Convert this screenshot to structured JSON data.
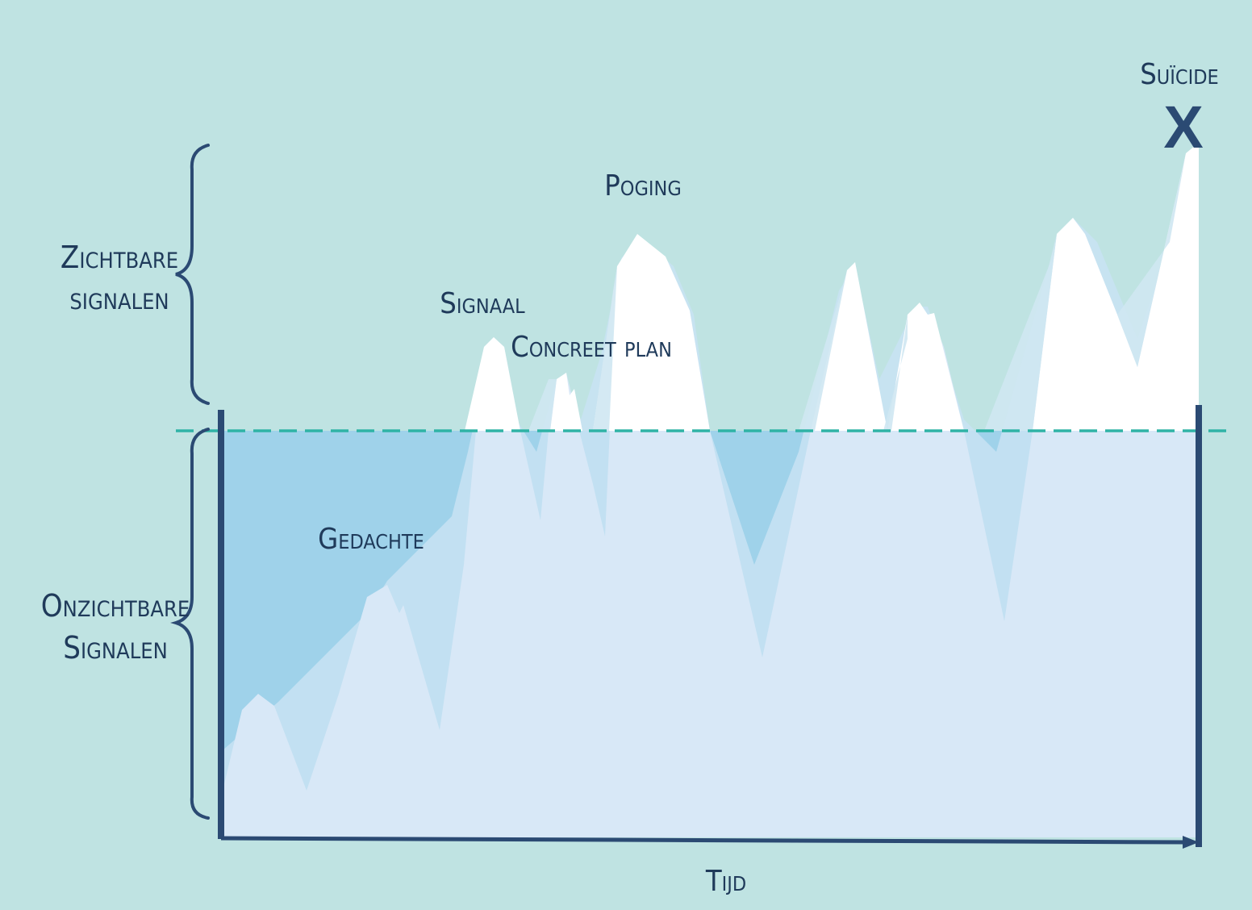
{
  "diagram": {
    "zones": {
      "visible_label_line1": "Zichtbare",
      "visible_label_line2": "signalen",
      "invisible_label_line1": "Onzichtbare",
      "invisible_label_line2": "Signalen"
    },
    "stages": {
      "thought": "Gedachte",
      "signal": "Signaal",
      "plan": "Concreet plan",
      "attempt": "Poging",
      "suicide": "Suïcide"
    },
    "suicide_marker": "X",
    "x_axis_label": "Tijd",
    "colors": {
      "background": "#bfe3e2",
      "underwater_fill": "#d8e8f7",
      "mid_fill": "#a9d6ec",
      "deep_fill": "#95cbe7",
      "peak_fill": "#ffffff",
      "axis_color": "#2b4a73",
      "waterline_color": "#2fb3a6",
      "text_color": "#1f3a5a"
    }
  }
}
